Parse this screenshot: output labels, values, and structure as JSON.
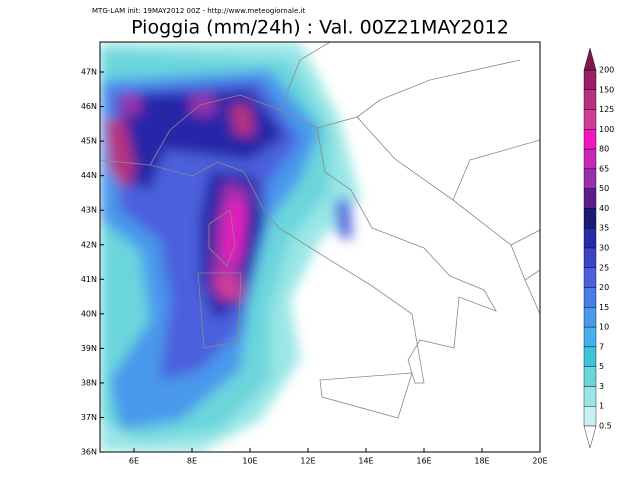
{
  "header": "MTG-LAM init: 19MAY2012 00Z - http://www.meteogiornale.it",
  "title": "Pioggia (mm/24h) : Val. 00Z21MAY2012",
  "lat_labels": [
    "47N",
    "46N",
    "45N",
    "44N",
    "43N",
    "42N",
    "41N",
    "40N",
    "39N",
    "38N",
    "37N",
    "36N"
  ],
  "lon_labels": [
    "6E",
    "8E",
    "10E",
    "12E",
    "14E",
    "16E",
    "18E",
    "20E"
  ],
  "colorbar": {
    "levels": [
      200,
      150,
      125,
      100,
      80,
      65,
      50,
      40,
      35,
      30,
      25,
      20,
      15,
      10,
      7,
      5,
      3,
      1,
      0.5
    ],
    "colors": [
      "#9a1f68",
      "#b8307e",
      "#d03c98",
      "#f018c0",
      "#c828b8",
      "#9a30a8",
      "#5c1c8a",
      "#1a1a78",
      "#2828a8",
      "#3a44c8",
      "#4c60dc",
      "#4a7ce6",
      "#4a98ec",
      "#48b0ea",
      "#3ec4d8",
      "#6ad6dc",
      "#9ae6e6",
      "#c8f2f2"
    ],
    "above_color": "#7a1a50",
    "below_color": "#ffffff"
  }
}
